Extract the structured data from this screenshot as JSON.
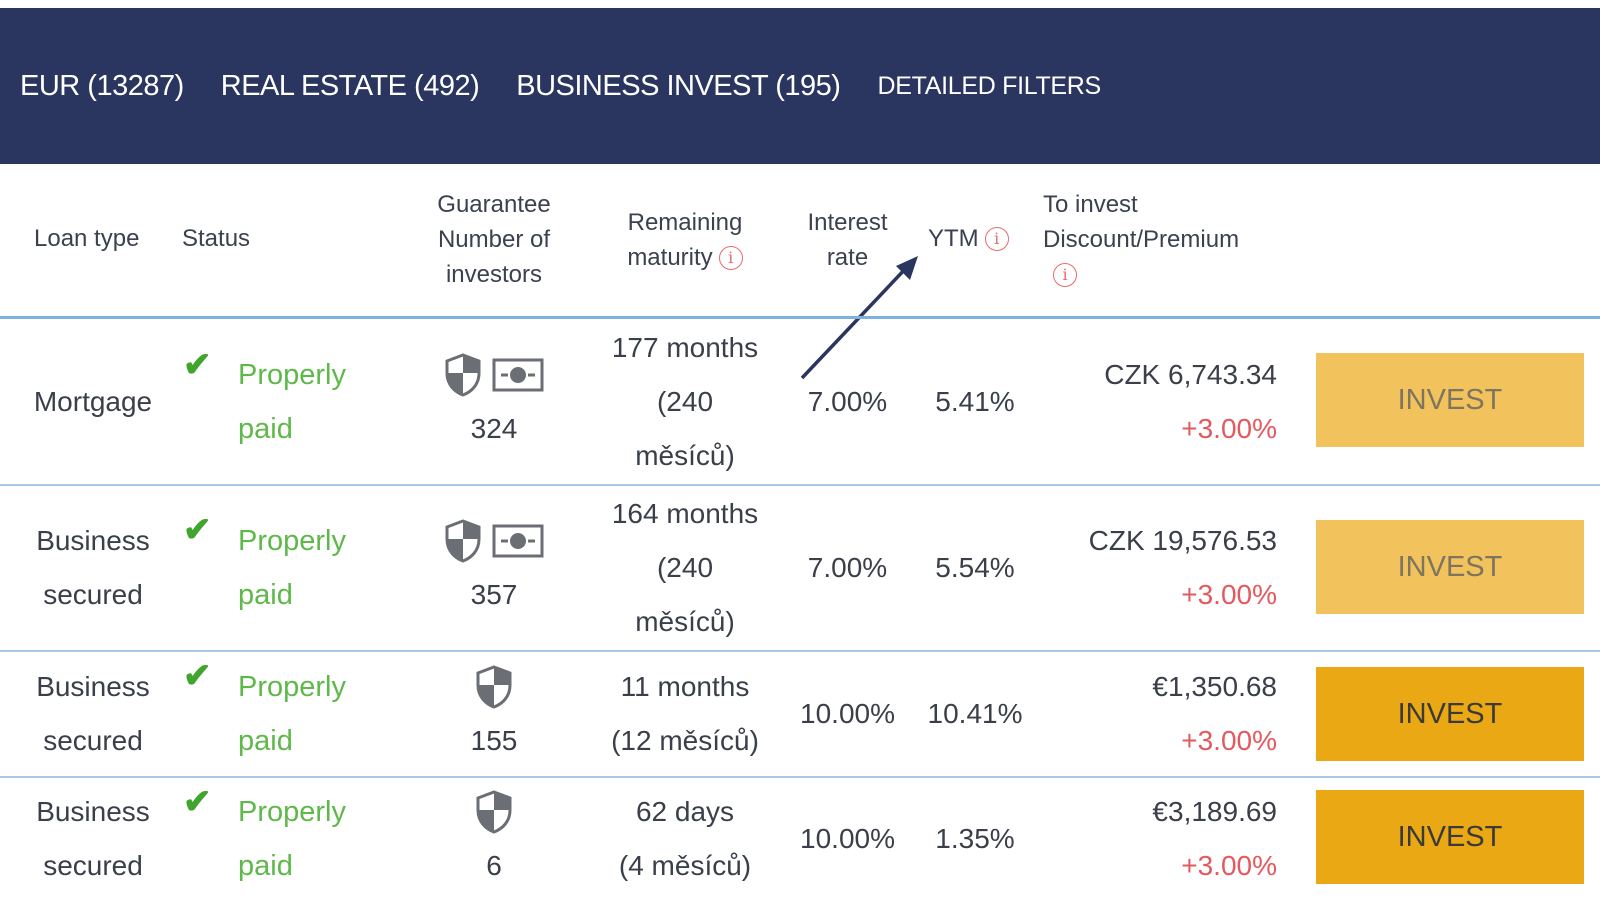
{
  "tabs": [
    {
      "label": "EUR (13287)"
    },
    {
      "label": "REAL ESTATE (492)"
    },
    {
      "label": "BUSINESS INVEST (195)"
    },
    {
      "label": "DETAILED FILTERS"
    }
  ],
  "headers": {
    "loan_type": "Loan type",
    "status": "Status",
    "guarantee_line1": "Guarantee",
    "guarantee_line2": "Number of",
    "guarantee_line3": "investors",
    "remaining_line1": "Remaining",
    "remaining_line2": "maturity",
    "interest_line1": "Interest",
    "interest_line2": "rate",
    "ytm": "YTM",
    "to_invest_line1": "To invest",
    "to_invest_line2": "Discount/Premium",
    "info_glyph": "i"
  },
  "rows": [
    {
      "loan_type_1": "Mortgage",
      "loan_type_2": "",
      "status_1": "Properly",
      "status_2": "paid",
      "investors": "324",
      "maturity_1": "177 months",
      "maturity_2": "(240",
      "maturity_3": "měsíců)",
      "interest": "7.00%",
      "ytm": "5.41%",
      "amount": "CZK 6,743.34",
      "premium": "+3.00%",
      "button": "INVEST",
      "has_cash_icon": true
    },
    {
      "loan_type_1": "Business",
      "loan_type_2": "secured",
      "status_1": "Properly",
      "status_2": "paid",
      "investors": "357",
      "maturity_1": "164 months",
      "maturity_2": "(240",
      "maturity_3": "měsíců)",
      "interest": "7.00%",
      "ytm": "5.54%",
      "amount": "CZK 19,576.53",
      "premium": "+3.00%",
      "button": "INVEST",
      "has_cash_icon": true
    },
    {
      "loan_type_1": "Business",
      "loan_type_2": "secured",
      "status_1": "Properly",
      "status_2": "paid",
      "investors": "155",
      "maturity_1": "11 months",
      "maturity_2": "(12 měsíců)",
      "interest": "10.00%",
      "ytm": "10.41%",
      "amount": "€1,350.68",
      "premium": "+3.00%",
      "button": "INVEST",
      "has_cash_icon": false
    },
    {
      "loan_type_1": "Business",
      "loan_type_2": "secured",
      "status_1": "Properly",
      "status_2": "paid",
      "investors": "6",
      "maturity_1": "62 days",
      "maturity_2": "(4 měsíců)",
      "interest": "10.00%",
      "ytm": "1.35%",
      "amount": "€3,189.69",
      "premium": "+3.00%",
      "button": "INVEST",
      "has_cash_icon": false
    }
  ],
  "icons": {
    "check": "check-icon",
    "guarantee": "shield-icon",
    "buyback": "cash-icon",
    "info": "info-icon",
    "annotation": "arrow-annotation"
  },
  "colors": {
    "header_bg": "#2b3660",
    "status_green": "#5fb94a",
    "premium_red": "#e3595e",
    "invest_light": "#f2c35c",
    "invest_dark": "#eaa814",
    "divider": "#a9c8e5"
  }
}
